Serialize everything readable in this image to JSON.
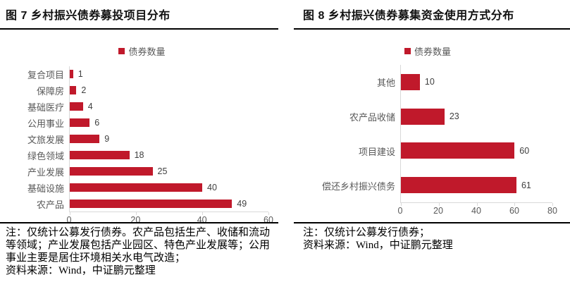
{
  "colors": {
    "accent": "#C0192B",
    "axis_line": "#D9D9D9",
    "muted_text": "#595959",
    "value_text": "#404040",
    "divider": "#000000"
  },
  "chart_data": [
    {
      "type": "bar",
      "orientation": "horizontal",
      "title": "图 7 乡村振兴债券募投项目分布",
      "legend": "债券数量",
      "categories": [
        "复合项目",
        "保障房",
        "基础医疗",
        "公用事业",
        "文旅发展",
        "绿色领域",
        "产业发展",
        "基础设施",
        "农产品"
      ],
      "values": [
        1,
        2,
        4,
        6,
        9,
        18,
        25,
        40,
        49
      ],
      "xlim": [
        0,
        60
      ],
      "xticks": [
        0,
        20,
        40,
        60
      ],
      "grid": false,
      "legend_position": "top-center",
      "notes": [
        "注：仅统计公募发行债券。农产品包括生产、收储和流动等领域；产业发展包括产业园区、特色产业发展等；公用事业主要是居住环境相关水电气改造；",
        "资料来源：Wind，中证鹏元整理"
      ]
    },
    {
      "type": "bar",
      "orientation": "horizontal",
      "title": "图 8 乡村振兴债券募集资金使用方式分布",
      "legend": "债券数量",
      "categories": [
        "其他",
        "农产品收储",
        "项目建设",
        "偿还乡村振兴债务"
      ],
      "values": [
        10,
        23,
        60,
        61
      ],
      "xlim": [
        0,
        80
      ],
      "xticks": [
        0,
        20,
        40,
        60,
        80
      ],
      "grid": false,
      "legend_position": "top-center",
      "notes": [
        "注：仅统计公募发行债券；",
        "资料来源：Wind，中证鹏元整理"
      ]
    }
  ]
}
